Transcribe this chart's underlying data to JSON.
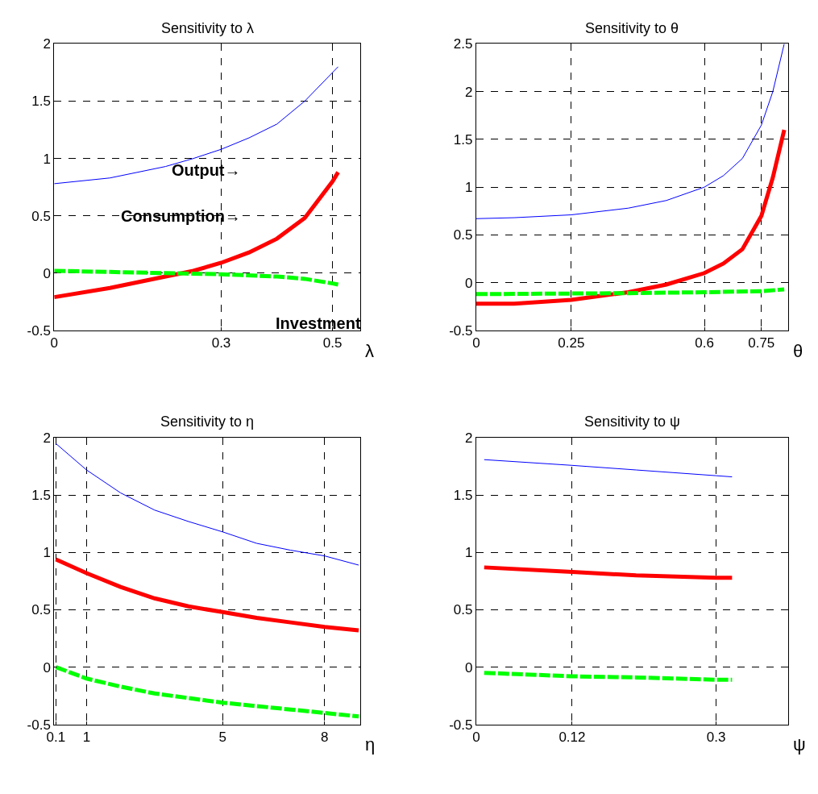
{
  "chart_data": [
    {
      "type": "line",
      "title": "Sensitivity to λ",
      "xlabel": "λ",
      "xlim": [
        0,
        0.55
      ],
      "xticks": [
        0,
        0.3,
        0.5
      ],
      "ylim": [
        -0.5,
        2
      ],
      "yticks": [
        -0.5,
        0,
        0.5,
        1,
        1.5,
        2
      ],
      "grid": true,
      "legend": false,
      "series": [
        {
          "name": "Output→",
          "color": "#0000ff",
          "x": [
            0,
            0.1,
            0.2,
            0.25,
            0.3,
            0.35,
            0.4,
            0.45,
            0.5,
            0.51
          ],
          "values": [
            0.78,
            0.83,
            0.93,
            1.0,
            1.08,
            1.18,
            1.3,
            1.5,
            1.75,
            1.8
          ]
        },
        {
          "name": "Consumption→",
          "color": "#ff0000",
          "x": [
            0,
            0.1,
            0.2,
            0.25,
            0.3,
            0.35,
            0.4,
            0.45,
            0.5,
            0.51
          ],
          "values": [
            -0.21,
            -0.13,
            -0.03,
            0.02,
            0.09,
            0.18,
            0.3,
            0.48,
            0.8,
            0.88
          ]
        },
        {
          "name": "Investment",
          "color": "#00ff00",
          "line_style": "dashed",
          "x": [
            0,
            0.1,
            0.2,
            0.3,
            0.4,
            0.45,
            0.5,
            0.51
          ],
          "values": [
            0.02,
            0.01,
            0.0,
            -0.01,
            -0.03,
            -0.05,
            -0.09,
            -0.1
          ]
        }
      ]
    },
    {
      "type": "line",
      "title": "Sensitivity to θ",
      "xlabel": "θ",
      "xlim": [
        0,
        0.82
      ],
      "xticks": [
        0,
        0.25,
        0.6,
        0.75
      ],
      "ylim": [
        -0.5,
        2.5
      ],
      "yticks": [
        -0.5,
        0,
        0.5,
        1,
        1.5,
        2,
        2.5
      ],
      "grid": true,
      "legend": false,
      "series": [
        {
          "color": "#0000ff",
          "x": [
            0,
            0.1,
            0.25,
            0.4,
            0.5,
            0.6,
            0.65,
            0.7,
            0.75,
            0.78,
            0.81
          ],
          "values": [
            0.67,
            0.68,
            0.71,
            0.78,
            0.86,
            1.0,
            1.12,
            1.3,
            1.65,
            2.0,
            2.5
          ]
        },
        {
          "color": "#ff0000",
          "x": [
            0,
            0.1,
            0.25,
            0.4,
            0.5,
            0.6,
            0.65,
            0.7,
            0.75,
            0.78,
            0.81
          ],
          "values": [
            -0.22,
            -0.22,
            -0.18,
            -0.1,
            -0.02,
            0.1,
            0.2,
            0.35,
            0.7,
            1.1,
            1.6
          ]
        },
        {
          "color": "#00ff00",
          "line_style": "dashed",
          "x": [
            0,
            0.4,
            0.6,
            0.75,
            0.81
          ],
          "values": [
            -0.12,
            -0.11,
            -0.1,
            -0.09,
            -0.07
          ]
        }
      ]
    },
    {
      "type": "line",
      "title": "Sensitivity to η",
      "xlabel": "η",
      "xlim": [
        0.05,
        9.05
      ],
      "xticks": [
        0.1,
        1,
        5,
        8
      ],
      "ylim": [
        -0.5,
        2
      ],
      "yticks": [
        -0.5,
        0,
        0.5,
        1,
        1.5,
        2
      ],
      "grid": true,
      "legend": false,
      "series": [
        {
          "color": "#0000ff",
          "x": [
            0.1,
            1,
            2,
            3,
            4,
            5,
            6,
            7,
            8,
            9
          ],
          "values": [
            1.95,
            1.72,
            1.52,
            1.37,
            1.27,
            1.18,
            1.08,
            1.02,
            0.97,
            0.89
          ]
        },
        {
          "color": "#ff0000",
          "x": [
            0.1,
            1,
            2,
            3,
            4,
            5,
            6,
            7,
            8,
            9
          ],
          "values": [
            0.94,
            0.82,
            0.7,
            0.6,
            0.53,
            0.48,
            0.43,
            0.39,
            0.35,
            0.32
          ]
        },
        {
          "color": "#00ff00",
          "line_style": "dashed",
          "x": [
            0.1,
            1,
            2,
            3,
            4,
            5,
            6,
            7,
            8,
            9
          ],
          "values": [
            0.0,
            -0.1,
            -0.17,
            -0.23,
            -0.27,
            -0.31,
            -0.34,
            -0.37,
            -0.4,
            -0.43
          ]
        }
      ]
    },
    {
      "type": "line",
      "title": "Sensitivity to ψ",
      "xlabel": "ψ",
      "xlim": [
        0,
        0.39
      ],
      "xticks": [
        0,
        0.12,
        0.3
      ],
      "ylim": [
        -0.5,
        2
      ],
      "yticks": [
        -0.5,
        0,
        0.5,
        1,
        1.5,
        2
      ],
      "grid": true,
      "legend": false,
      "series": [
        {
          "color": "#0000ff",
          "x": [
            0.01,
            0.12,
            0.2,
            0.3,
            0.32
          ],
          "values": [
            1.81,
            1.76,
            1.72,
            1.67,
            1.66
          ]
        },
        {
          "color": "#ff0000",
          "x": [
            0.01,
            0.12,
            0.2,
            0.3,
            0.32
          ],
          "values": [
            0.87,
            0.83,
            0.8,
            0.78,
            0.78
          ]
        },
        {
          "color": "#00ff00",
          "line_style": "dashed",
          "x": [
            0.01,
            0.12,
            0.2,
            0.3,
            0.32
          ],
          "values": [
            -0.05,
            -0.08,
            -0.09,
            -0.11,
            -0.11
          ]
        }
      ]
    }
  ]
}
